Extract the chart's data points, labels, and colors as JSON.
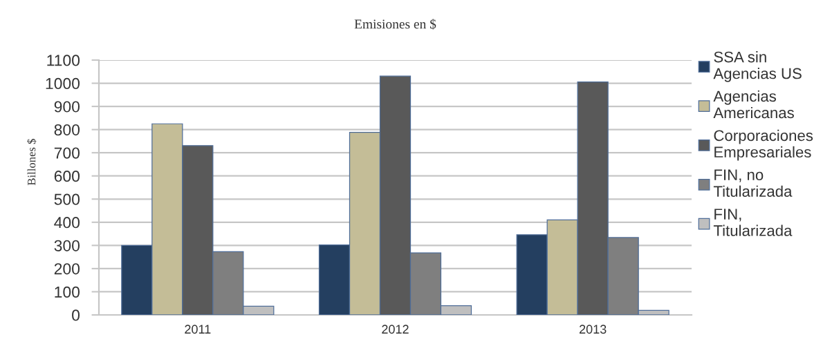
{
  "chart_data": {
    "type": "bar",
    "title": "Emisiones en $",
    "ylabel": "Billones $",
    "categories": [
      "2011",
      "2012",
      "2013"
    ],
    "series": [
      {
        "name": "SSA sin Agencias US",
        "color": "#243f60",
        "values": [
          300,
          302,
          346
        ]
      },
      {
        "name": "Agencias Americanas",
        "color": "#c4bd97",
        "values": [
          825,
          788,
          410
        ]
      },
      {
        "name": "Corporaciones Empresariales",
        "color": "#595959",
        "values": [
          731,
          1031,
          1006
        ]
      },
      {
        "name": "FIN, no Titularizada",
        "color": "#7f7f7f",
        "values": [
          273,
          268,
          334
        ]
      },
      {
        "name": "FIN, Titularizada",
        "color": "#bfbfbf",
        "values": [
          38,
          40,
          20
        ]
      }
    ],
    "ylim": [
      0,
      1100
    ],
    "yticks": [
      0,
      100,
      200,
      300,
      400,
      500,
      600,
      700,
      800,
      900,
      1000,
      1100
    ],
    "grid": "y",
    "legend": "right"
  }
}
